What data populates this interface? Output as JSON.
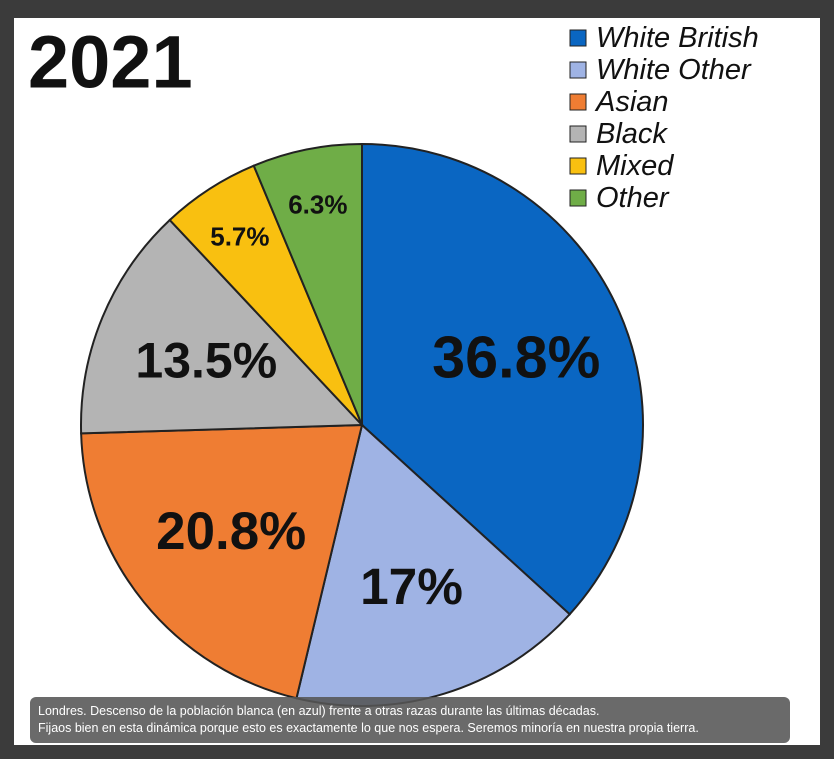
{
  "chart_data": {
    "type": "pie",
    "title": "2021",
    "categories": [
      "White British",
      "White Other",
      "Asian",
      "Black",
      "Mixed",
      "Other"
    ],
    "values": [
      36.8,
      17,
      20.8,
      13.5,
      5.7,
      6.3
    ],
    "value_labels": [
      "36.8%",
      "17%",
      "20.8%",
      "13.5%",
      "5.7%",
      "6.3%"
    ],
    "colors": [
      "#0a66c2",
      "#9fb3e4",
      "#ef7d33",
      "#b4b4b4",
      "#f9c010",
      "#6fad47"
    ],
    "legend": "top-right"
  },
  "caption": {
    "lines": [
      "Londres. Descenso de la población blanca (en azul) frente a otras razas durante las últimas décadas.",
      "Fijaos bien en esta dinámica porque esto es exactamente lo que nos espera. Seremos minoría en nuestra propia tierra."
    ]
  }
}
